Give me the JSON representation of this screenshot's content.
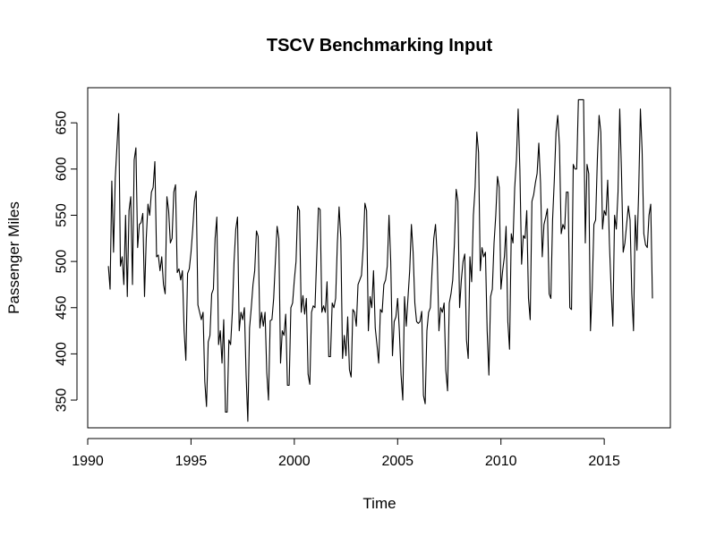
{
  "chart_data": {
    "type": "line",
    "title": "TSCV Benchmarking Input",
    "xlabel": "Time",
    "ylabel": "Passenger Miles",
    "xlim": [
      1990,
      2018.2
    ],
    "ylim": [
      320,
      688
    ],
    "xticks": [
      1990,
      1995,
      2000,
      2005,
      2010,
      2015
    ],
    "yticks": [
      350,
      400,
      450,
      500,
      550,
      600,
      650
    ],
    "grid": false,
    "series_color": "#000000",
    "start": [
      1991,
      1
    ],
    "frequency": 12,
    "series": [
      {
        "values": [
          495,
          470,
          587,
          510,
          590,
          625,
          660,
          495,
          505,
          475,
          550,
          462,
          555,
          570,
          475,
          610,
          623,
          515,
          540,
          542,
          552,
          462,
          525,
          562,
          550,
          575,
          580,
          608,
          505,
          507,
          490,
          505,
          475,
          465,
          570,
          555,
          520,
          525,
          575,
          583,
          488,
          492,
          480,
          490,
          425,
          393,
          487,
          492,
          510,
          535,
          565,
          576,
          453,
          445,
          437,
          445,
          370,
          343,
          413,
          420,
          465,
          470,
          525,
          548,
          410,
          425,
          390,
          437,
          337,
          337,
          415,
          410,
          445,
          500,
          535,
          548,
          425,
          445,
          437,
          450,
          377,
          327,
          428,
          450,
          475,
          490,
          533,
          527,
          428,
          445,
          430,
          445,
          380,
          350,
          436,
          437,
          460,
          500,
          538,
          525,
          390,
          425,
          420,
          443,
          366,
          366,
          450,
          455,
          480,
          500,
          560,
          555,
          445,
          463,
          443,
          460,
          378,
          367,
          445,
          452,
          450,
          505,
          558,
          556,
          445,
          452,
          445,
          478,
          397,
          397,
          455,
          450,
          460,
          520,
          559,
          525,
          395,
          420,
          398,
          440,
          383,
          375,
          448,
          445,
          430,
          475,
          480,
          485,
          515,
          563,
          555,
          425,
          462,
          450,
          490,
          428,
          410,
          390,
          448,
          445,
          475,
          480,
          495,
          550,
          500,
          398,
          435,
          440,
          460,
          425,
          377,
          350,
          462,
          430,
          460,
          490,
          540,
          510,
          455,
          435,
          433,
          435,
          446,
          355,
          346,
          425,
          445,
          450,
          490,
          525,
          540,
          505,
          425,
          450,
          445,
          455,
          382,
          360,
          455,
          465,
          480,
          520,
          578,
          565,
          450,
          480,
          500,
          508,
          415,
          395,
          505,
          478,
          550,
          580,
          640,
          618,
          490,
          515,
          505,
          510,
          425,
          377,
          462,
          470,
          520,
          550,
          592,
          580,
          470,
          490,
          505,
          538,
          435,
          405,
          530,
          520,
          580,
          610,
          665,
          600,
          497,
          528,
          525,
          555,
          460,
          437,
          565,
          572,
          585,
          595,
          628,
          585,
          505,
          540,
          548,
          557,
          465,
          460,
          545,
          588,
          640,
          658,
          625,
          530,
          540,
          535,
          575,
          575,
          450,
          448,
          605,
          600,
          600,
          675,
          675,
          675,
          675,
          520,
          605,
          595,
          425,
          470,
          540,
          545,
          610,
          658,
          640,
          535,
          555,
          550,
          588,
          520,
          470,
          430,
          550,
          535,
          575,
          665,
          598,
          510,
          520,
          540,
          560,
          545,
          465,
          425,
          550,
          512,
          575,
          665,
          620,
          530,
          518,
          515,
          550,
          562,
          460
        ]
      }
    ]
  }
}
